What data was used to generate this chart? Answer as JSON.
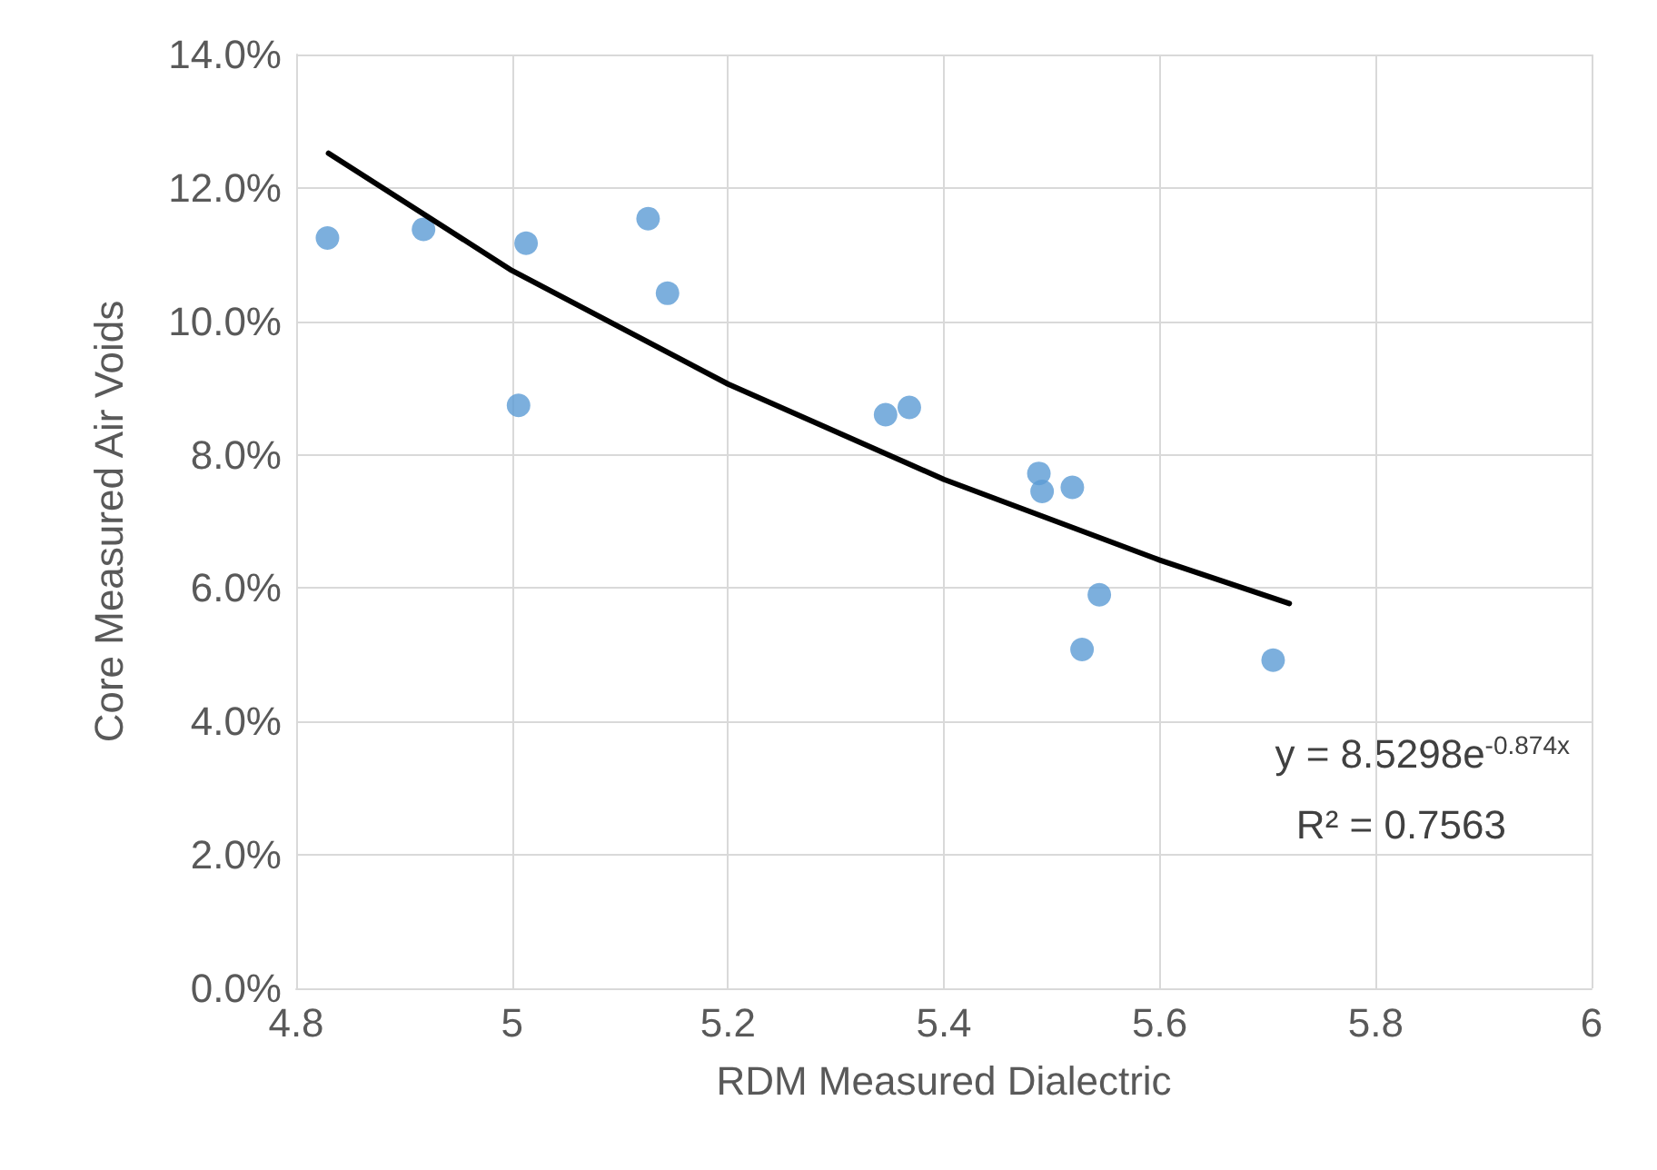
{
  "chart_data": {
    "type": "scatter",
    "xlabel": "RDM Measured Dialectric",
    "ylabel": "Core Measured Air Voids",
    "xlim": [
      4.8,
      6
    ],
    "xticks": [
      4.8,
      5,
      5.2,
      5.4,
      5.6,
      5.8,
      6
    ],
    "ylim": [
      0,
      14
    ],
    "yticks": [
      {
        "value": 0,
        "label": "0.0%"
      },
      {
        "value": 2,
        "label": "2.0%"
      },
      {
        "value": 4,
        "label": "4.0%"
      },
      {
        "value": 6,
        "label": "6.0%"
      },
      {
        "value": 8,
        "label": "8.0%"
      },
      {
        "value": 10,
        "label": "10.0%"
      },
      {
        "value": 12,
        "label": "12.0%"
      },
      {
        "value": 14,
        "label": "14.0%"
      }
    ],
    "grid": true,
    "marker": "circle",
    "series": [
      {
        "color": "#5b9bd5",
        "x": [
          4.829,
          4.918,
          5.013,
          5.006,
          5.126,
          5.144,
          5.346,
          5.368,
          5.488,
          5.519,
          5.491,
          5.544,
          5.528,
          5.705
        ],
        "values": [
          11.25,
          11.38,
          11.17,
          8.74,
          11.54,
          10.42,
          8.6,
          8.71,
          7.72,
          7.51,
          7.45,
          5.9,
          5.08,
          4.92
        ]
      },
      {
        "type": "line",
        "color": "#000000",
        "marker": "none",
        "line_style": "solid",
        "x": [
          4.83,
          5.0,
          5.2,
          5.4,
          5.6,
          5.72
        ],
        "values": [
          12.52,
          10.76,
          9.06,
          7.63,
          6.42,
          5.77
        ]
      }
    ],
    "annotations": [
      "y = 8.5298e$^{-0.874x}$",
      "R² = 0.7563"
    ]
  }
}
